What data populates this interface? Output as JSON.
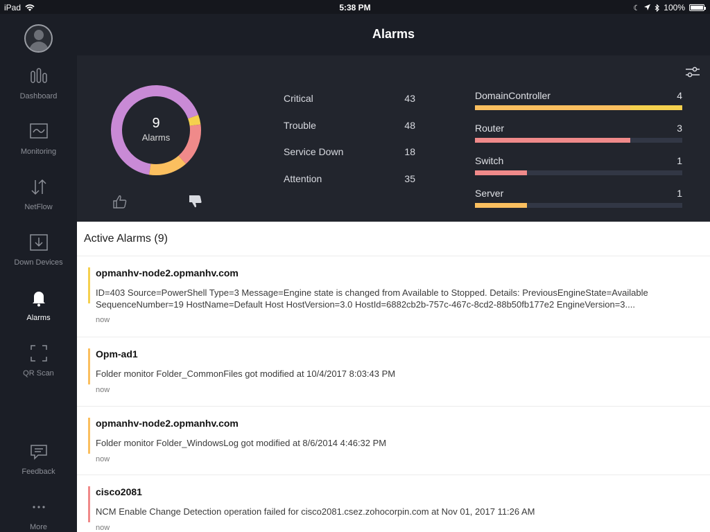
{
  "status_bar": {
    "device": "iPad",
    "time": "5:38 PM",
    "battery": "100%"
  },
  "header": {
    "title": "Alarms"
  },
  "sidebar": {
    "items": [
      {
        "label": "Dashboard"
      },
      {
        "label": "Monitoring"
      },
      {
        "label": "NetFlow"
      },
      {
        "label": "Down Devices"
      },
      {
        "label": "Alarms"
      },
      {
        "label": "QR Scan"
      },
      {
        "label": "Feedback"
      },
      {
        "label": "More"
      }
    ]
  },
  "donut": {
    "count": "9",
    "label": "Alarms",
    "segments": [
      {
        "name": "Attention",
        "fraction": 0.035,
        "color": "#f5d04e"
      },
      {
        "name": "Trouble",
        "fraction": 0.155,
        "color": "#f08a8a"
      },
      {
        "name": "Service Down",
        "fraction": 0.14,
        "color": "#fbbf5f"
      },
      {
        "name": "Critical",
        "fraction": 0.67,
        "color": "#c98ad6"
      }
    ]
  },
  "severity": [
    {
      "name": "Critical",
      "count": "43"
    },
    {
      "name": "Trouble",
      "count": "48"
    },
    {
      "name": "Service Down",
      "count": "18"
    },
    {
      "name": "Attention",
      "count": "35"
    }
  ],
  "categories": [
    {
      "name": "DomainController",
      "count": "4",
      "fill": 0.75,
      "color": "#fbbf5f",
      "fill2": 0.25,
      "color2": "#f5d04e"
    },
    {
      "name": "Router",
      "count": "3",
      "fill": 0.75,
      "color": "#f08a8a"
    },
    {
      "name": "Switch",
      "count": "1",
      "fill": 0.25,
      "color": "#f08a8a"
    },
    {
      "name": "Server",
      "count": "1",
      "fill": 0.25,
      "color": "#fbbf5f"
    }
  ],
  "active_alarms": {
    "title": "Active Alarms (9)",
    "items": [
      {
        "host": "opmanhv-node2.opmanhv.com",
        "message": "ID=403 Source=PowerShell Type=3 Message=Engine state is changed from Available to Stopped. Details: PreviousEngineState=Available SequenceNumber=19 HostName=Default Host     HostVersion=3.0 HostId=6882cb2b-757c-467c-8cd2-88b50fb177e2 EngineVersion=3....",
        "time": "now",
        "color": "#f5d04e"
      },
      {
        "host": "Opm-ad1",
        "message": "Folder monitor Folder_CommonFiles got modified at 10/4/2017 8:03:43 PM",
        "time": "now",
        "color": "#fbbf5f"
      },
      {
        "host": "opmanhv-node2.opmanhv.com",
        "message": "Folder monitor Folder_WindowsLog got modified at 8/6/2014 4:46:32 PM",
        "time": "now",
        "color": "#fbbf5f"
      },
      {
        "host": "cisco2081",
        "message": "NCM Enable Change Detection operation failed for cisco2081.csez.zohocorpin.com at Nov 01, 2017 11:26 AM",
        "time": "now",
        "color": "#f08a8a"
      }
    ]
  }
}
